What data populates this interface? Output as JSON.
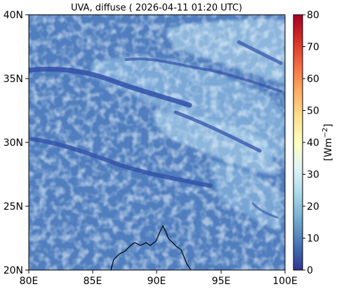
{
  "title": "UVA, diffuse ( 2026-04-11 01:20 UTC)",
  "map": {
    "lon_range": [
      80,
      100
    ],
    "lat_range": [
      20,
      40
    ],
    "x_ticks": [
      {
        "value": 80,
        "label": "80E"
      },
      {
        "value": 85,
        "label": "85E"
      },
      {
        "value": 90,
        "label": "90E"
      },
      {
        "value": 95,
        "label": "95E"
      },
      {
        "value": 100,
        "label": "100E"
      }
    ],
    "y_ticks": [
      {
        "value": 40,
        "label": "40N"
      },
      {
        "value": 35,
        "label": "35N"
      },
      {
        "value": 30,
        "label": "30N"
      },
      {
        "value": 25,
        "label": "25N"
      },
      {
        "value": 20,
        "label": "20N"
      }
    ],
    "field_description_colors": {
      "background": "#4a79ba",
      "low": "#3b4cc0",
      "high_clouds": "#a9d3ea"
    }
  },
  "colorbar": {
    "label": "[Wm$^{-2}$]",
    "label_display": "[Wm",
    "label_exponent": "−2",
    "label_close": "]",
    "range": [
      0,
      80
    ],
    "ticks": [
      {
        "value": 80,
        "label": "80"
      },
      {
        "value": 70,
        "label": "70"
      },
      {
        "value": 60,
        "label": "60"
      },
      {
        "value": 50,
        "label": "50"
      },
      {
        "value": 40,
        "label": "40"
      },
      {
        "value": 30,
        "label": "30"
      },
      {
        "value": 20,
        "label": "20"
      },
      {
        "value": 10,
        "label": "10"
      },
      {
        "value": 0,
        "label": "0"
      }
    ],
    "colormap": "RdYlBu_r"
  }
}
